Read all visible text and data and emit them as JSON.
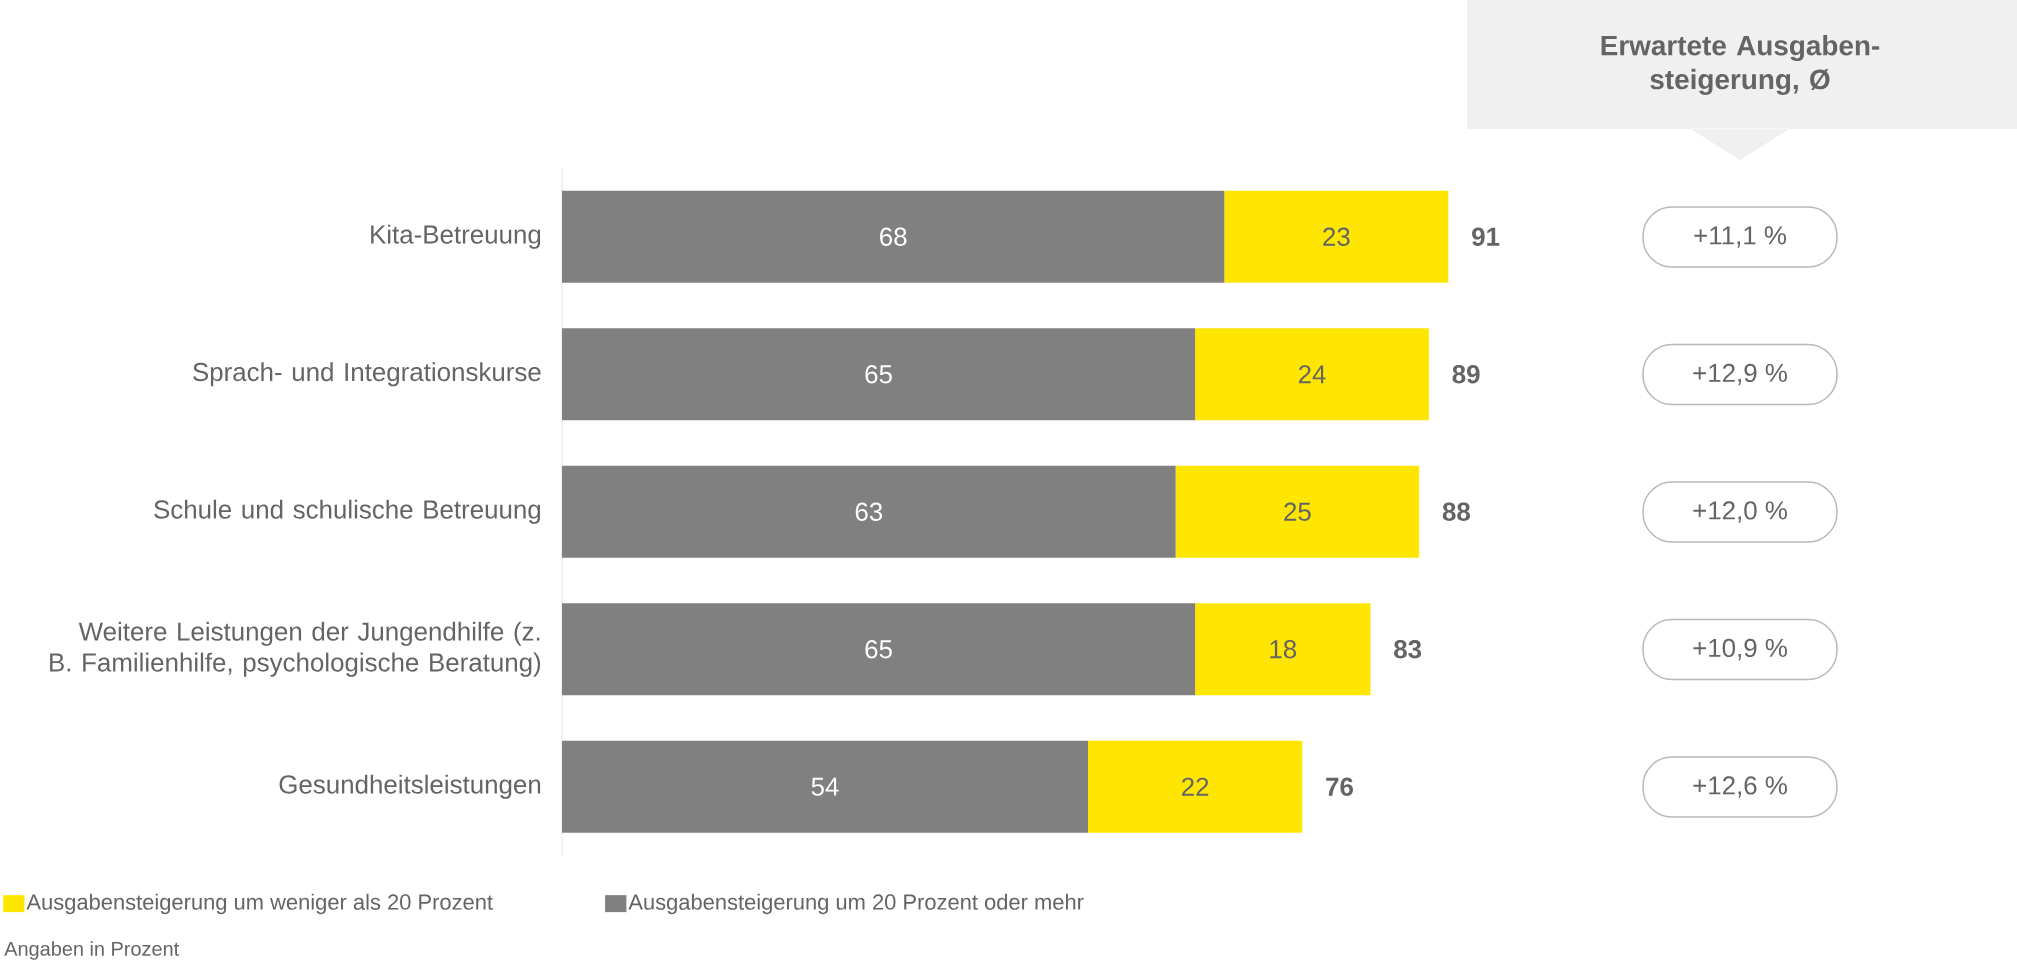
{
  "chart_data": {
    "type": "bar",
    "orientation": "horizontal",
    "stacked": true,
    "categories": [
      "Kita-Betreuung",
      "Sprach- und Integrationskurse",
      "Schule und schulische Betreuung",
      "Weitere Leistungen der Jungendhilfe (z. B. Familienhilfe, psychologische Beratung)",
      "Gesundheitsleistungen"
    ],
    "series": [
      {
        "name": "Ausgabensteigerung um 20 Prozent oder mehr",
        "color": "#808080",
        "values": [
          68,
          65,
          63,
          65,
          54
        ]
      },
      {
        "name": "Ausgabensteigerung um weniger als 20 Prozent",
        "color": "#ffe600",
        "values": [
          23,
          24,
          25,
          18,
          22
        ]
      }
    ],
    "totals": [
      "91",
      "89",
      "88",
      "83",
      "76"
    ],
    "data_labels": true,
    "tick_labels": "y",
    "legend": "bottom left",
    "annotations": [
      "Erwartete Ausgaben- steigerung, Ø",
      "+11,1 %",
      "+12,9 %",
      "+12,0 %",
      "+10,9 %",
      "+12,6 %",
      "Angaben in Prozent"
    ]
  }
}
